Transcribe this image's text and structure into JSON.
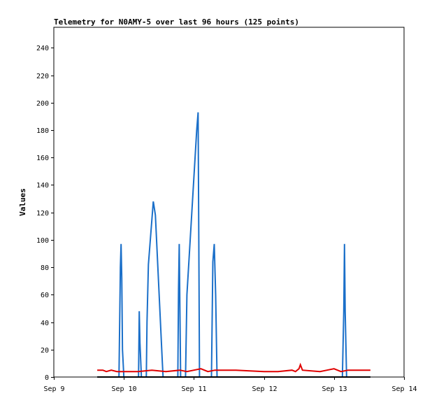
{
  "chart_data": {
    "type": "line",
    "title": "Telemetry for N0AMY-5 over last 96 hours (125 points)",
    "xlabel": "",
    "ylabel": "Values",
    "x_ticks": [
      "Sep 9",
      "Sep 10",
      "Sep 11",
      "Sep 12",
      "Sep 13",
      "Sep 14"
    ],
    "x_range_days": [
      9,
      14
    ],
    "y_ticks": [
      0,
      20,
      40,
      60,
      80,
      100,
      120,
      140,
      160,
      180,
      200,
      220,
      240
    ],
    "ylim": [
      0,
      255
    ],
    "grid": false,
    "legend": "none",
    "series": [
      {
        "color": "#1a6fc9",
        "points": [
          [
            9.62,
            0
          ],
          [
            9.93,
            0
          ],
          [
            9.95,
            80
          ],
          [
            9.96,
            97
          ],
          [
            9.97,
            72
          ],
          [
            9.98,
            20
          ],
          [
            10.0,
            0
          ],
          [
            10.21,
            0
          ],
          [
            10.22,
            48
          ],
          [
            10.23,
            25
          ],
          [
            10.25,
            0
          ],
          [
            10.32,
            0
          ],
          [
            10.33,
            40
          ],
          [
            10.35,
            82
          ],
          [
            10.42,
            128
          ],
          [
            10.45,
            118
          ],
          [
            10.55,
            10
          ],
          [
            10.56,
            0
          ],
          [
            10.77,
            0
          ],
          [
            10.78,
            64
          ],
          [
            10.79,
            97
          ],
          [
            10.8,
            48
          ],
          [
            10.81,
            0
          ],
          [
            10.88,
            0
          ],
          [
            10.9,
            60
          ],
          [
            11.04,
            180
          ],
          [
            11.06,
            193
          ],
          [
            11.07,
            100
          ],
          [
            11.08,
            0
          ],
          [
            11.25,
            0
          ],
          [
            11.27,
            84
          ],
          [
            11.29,
            97
          ],
          [
            11.31,
            60
          ],
          [
            11.33,
            0
          ],
          [
            13.12,
            0
          ],
          [
            13.14,
            48
          ],
          [
            13.15,
            97
          ],
          [
            13.16,
            48
          ],
          [
            13.18,
            0
          ],
          [
            13.52,
            0
          ]
        ]
      },
      {
        "color": "#e00000",
        "points": [
          [
            9.62,
            5
          ],
          [
            9.7,
            5
          ],
          [
            9.75,
            4
          ],
          [
            9.82,
            5
          ],
          [
            9.9,
            4
          ],
          [
            10.0,
            4
          ],
          [
            10.2,
            4
          ],
          [
            10.4,
            5
          ],
          [
            10.6,
            4
          ],
          [
            10.8,
            5
          ],
          [
            10.9,
            4
          ],
          [
            11.0,
            5
          ],
          [
            11.1,
            6
          ],
          [
            11.2,
            4
          ],
          [
            11.3,
            5
          ],
          [
            11.6,
            5
          ],
          [
            12.0,
            4
          ],
          [
            12.2,
            4
          ],
          [
            12.4,
            5
          ],
          [
            12.45,
            4
          ],
          [
            12.5,
            6
          ],
          [
            12.52,
            9
          ],
          [
            12.55,
            5
          ],
          [
            12.8,
            4
          ],
          [
            12.9,
            5
          ],
          [
            13.0,
            6
          ],
          [
            13.1,
            4
          ],
          [
            13.2,
            5
          ],
          [
            13.52,
            5
          ]
        ]
      },
      {
        "color": "#000000",
        "points": [
          [
            9.62,
            0
          ],
          [
            13.52,
            0
          ]
        ]
      }
    ]
  }
}
